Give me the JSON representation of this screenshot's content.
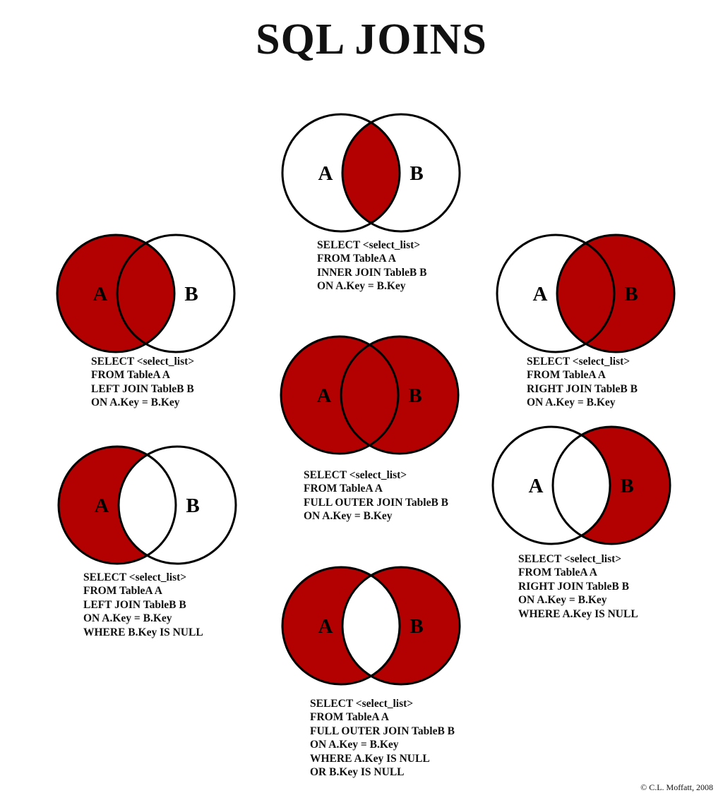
{
  "title": "SQL JOINS",
  "colors": {
    "fill": "#b30000",
    "outline": "#000000",
    "background": "#ffffff"
  },
  "set_labels": {
    "a": "A",
    "b": "B"
  },
  "joins": [
    {
      "id": "inner-join",
      "regions": {
        "a_only": false,
        "both": true,
        "b_only": false
      },
      "query": [
        "SELECT <select_list>",
        "FROM TableA A",
        "INNER JOIN TableB B",
        "ON A.Key = B.Key"
      ]
    },
    {
      "id": "left-join",
      "regions": {
        "a_only": true,
        "both": true,
        "b_only": false
      },
      "query": [
        "SELECT <select_list>",
        "FROM TableA A",
        "LEFT JOIN TableB B",
        "ON A.Key = B.Key"
      ]
    },
    {
      "id": "right-join",
      "regions": {
        "a_only": false,
        "both": true,
        "b_only": true
      },
      "query": [
        "SELECT <select_list>",
        "FROM TableA A",
        "RIGHT JOIN TableB B",
        "ON A.Key = B.Key"
      ]
    },
    {
      "id": "full-outer-join",
      "regions": {
        "a_only": true,
        "both": true,
        "b_only": true
      },
      "query": [
        "SELECT <select_list>",
        "FROM TableA A",
        "FULL OUTER JOIN TableB B",
        "ON A.Key = B.Key"
      ]
    },
    {
      "id": "left-join-excluding",
      "regions": {
        "a_only": true,
        "both": false,
        "b_only": false
      },
      "query": [
        "SELECT <select_list>",
        "FROM TableA A",
        "LEFT JOIN TableB B",
        "ON A.Key = B.Key",
        "WHERE B.Key IS NULL"
      ]
    },
    {
      "id": "right-join-excluding",
      "regions": {
        "a_only": false,
        "both": false,
        "b_only": true
      },
      "query": [
        "SELECT <select_list>",
        "FROM TableA A",
        "RIGHT JOIN TableB B",
        "ON A.Key = B.Key",
        "WHERE A.Key IS NULL"
      ]
    },
    {
      "id": "full-outer-join-excluding",
      "regions": {
        "a_only": true,
        "both": false,
        "b_only": true
      },
      "query": [
        "SELECT <select_list>",
        "FROM TableA A",
        "FULL OUTER JOIN TableB B",
        "ON A.Key = B.Key",
        "WHERE A.Key IS NULL",
        "OR B.Key IS NULL"
      ]
    }
  ],
  "credit": "© C.L. Moffatt, 2008"
}
